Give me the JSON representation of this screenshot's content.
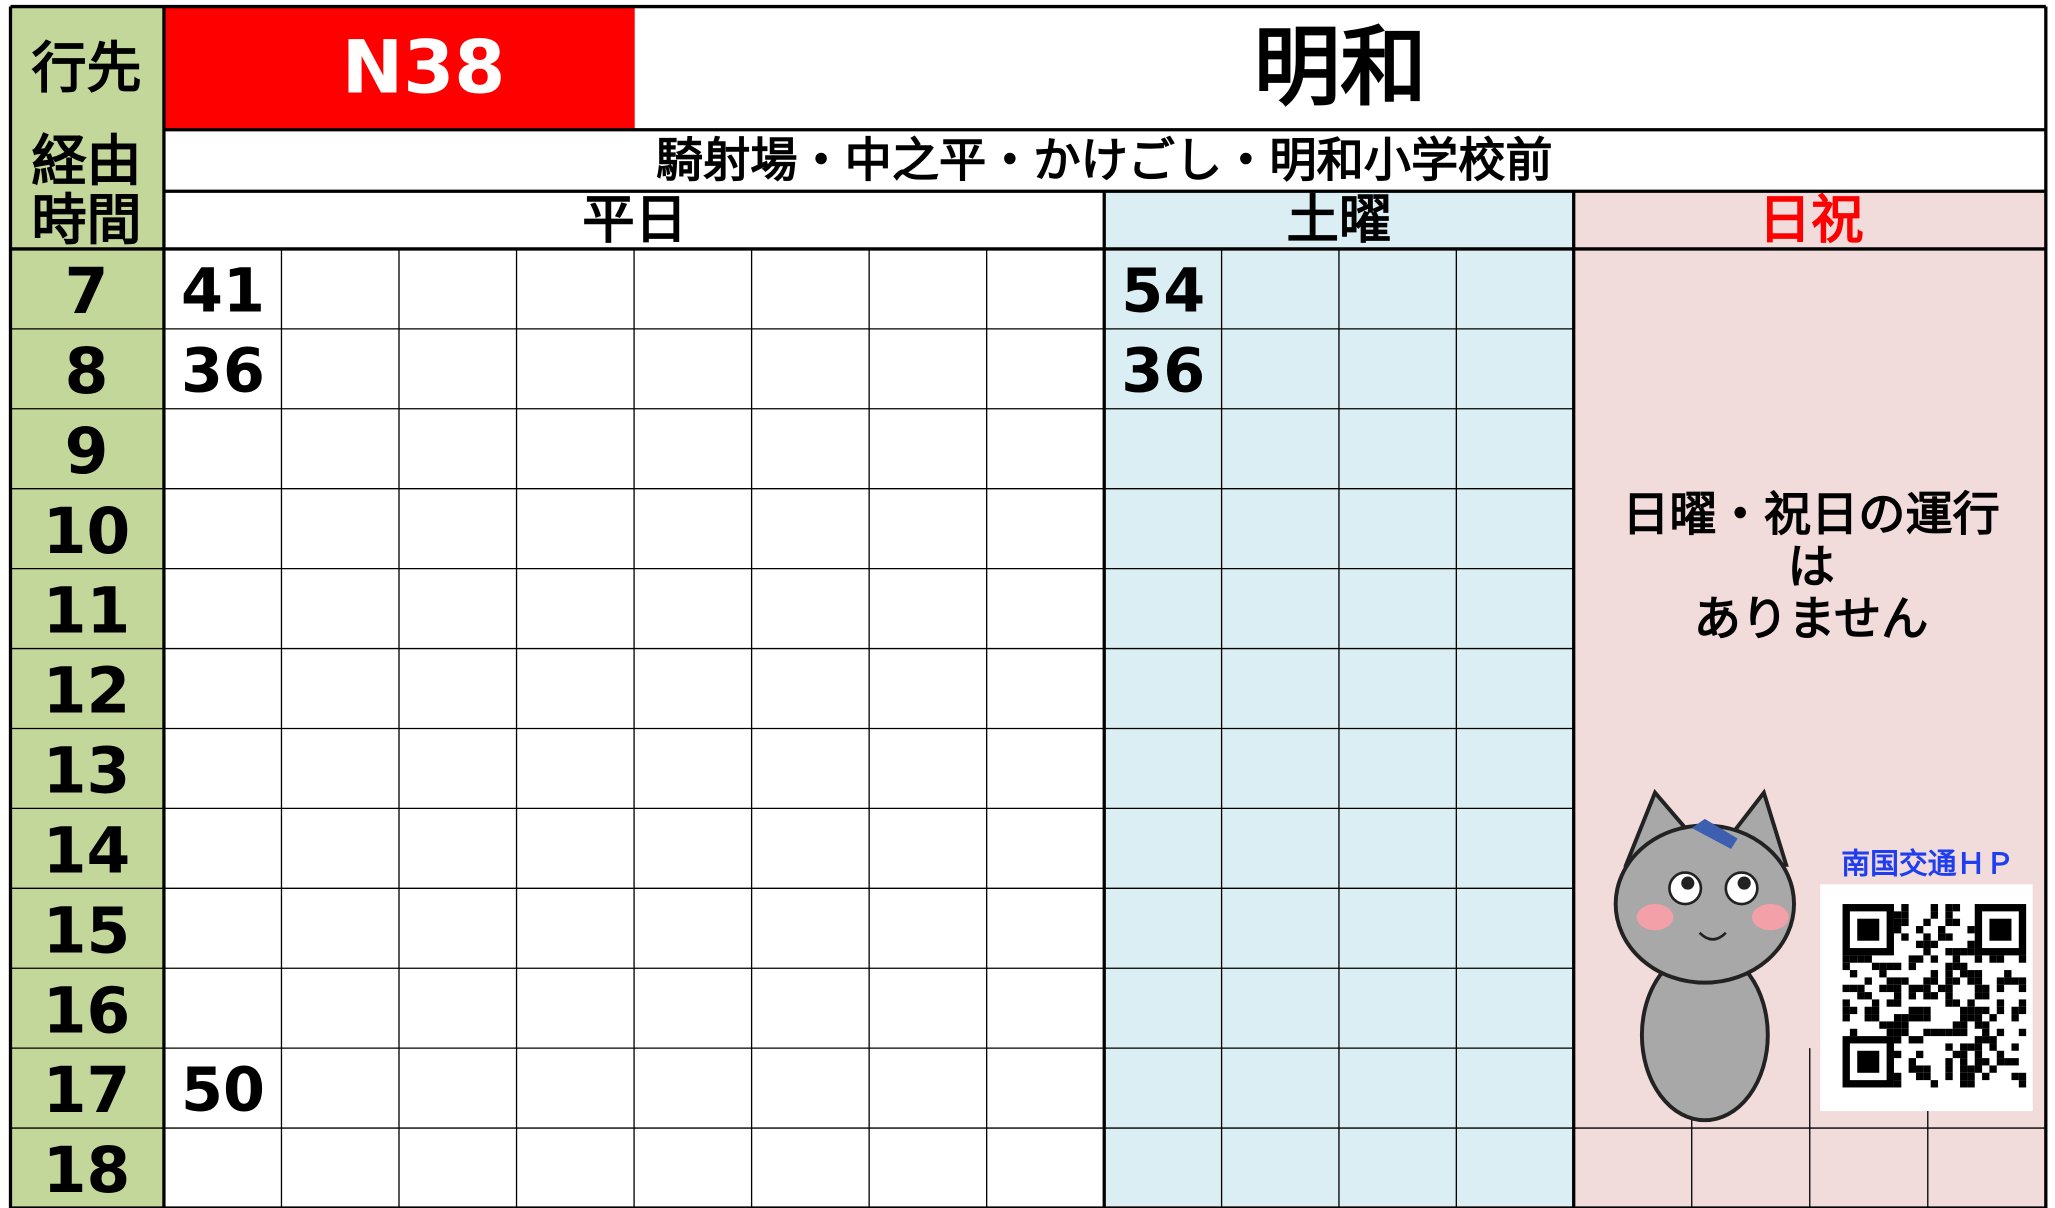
{
  "header": {
    "destination_label": "行先",
    "route": "N38",
    "destination": "明和",
    "via_label": "経由",
    "via": "騎射場・中之平・かけごし・明和小学校前",
    "time_label": "時間",
    "weekday": "平日",
    "saturday": "土曜",
    "holiday": "日祝"
  },
  "hours": [
    "7",
    "8",
    "9",
    "10",
    "11",
    "12",
    "13",
    "14",
    "15",
    "16",
    "17",
    "18"
  ],
  "weekday": [
    [
      "41"
    ],
    [
      "36"
    ],
    [],
    [],
    [],
    [],
    [],
    [],
    [],
    [],
    [
      "50"
    ],
    []
  ],
  "saturday": [
    [
      "54"
    ],
    [
      "36"
    ],
    [],
    [],
    [],
    [],
    [],
    [],
    [],
    [],
    [],
    []
  ],
  "holiday_note": [
    "日曜・祝日の運行",
    "は",
    "ありません"
  ],
  "qr_label": "南国交通ＨＰ"
}
